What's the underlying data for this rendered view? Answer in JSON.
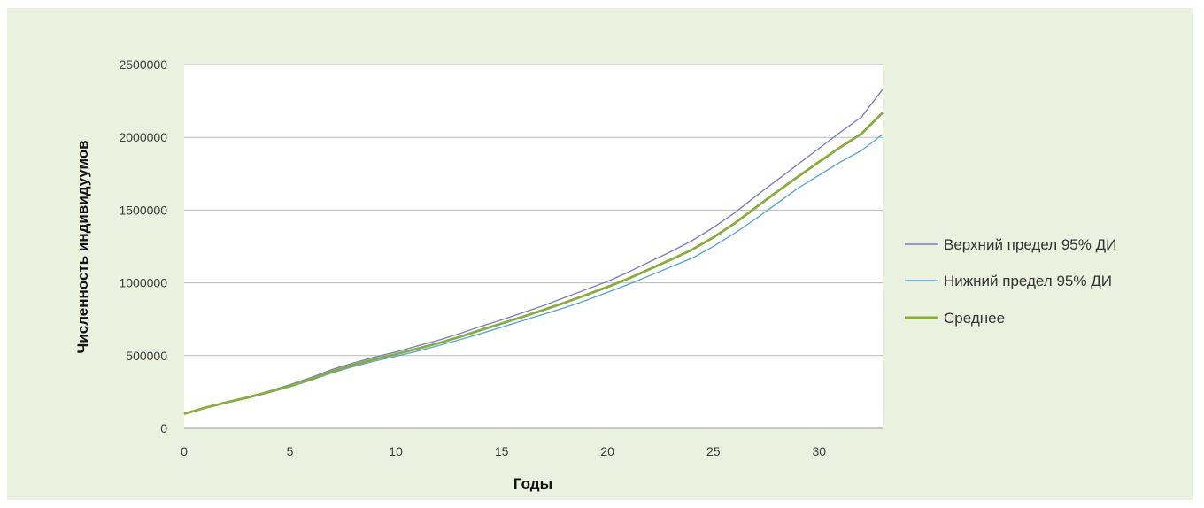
{
  "chart_data": {
    "type": "line",
    "title": "",
    "xlabel": "Годы",
    "ylabel": "Численность индивидуумов",
    "xlim": [
      0,
      33
    ],
    "ylim": [
      0,
      2500000
    ],
    "x_ticks": [
      0,
      5,
      10,
      15,
      20,
      25,
      30
    ],
    "y_ticks": [
      0,
      500000,
      1000000,
      1500000,
      2000000,
      2500000
    ],
    "grid": "horizontal",
    "legend_position": "right",
    "x": [
      0,
      1,
      2,
      3,
      4,
      5,
      6,
      7,
      8,
      9,
      10,
      11,
      12,
      13,
      14,
      15,
      16,
      17,
      18,
      19,
      20,
      21,
      22,
      23,
      24,
      25,
      26,
      27,
      28,
      29,
      30,
      31,
      32,
      33
    ],
    "series": [
      {
        "name": "Верхний предел 95% ДИ",
        "color": "#7b7fc4",
        "values": [
          100000,
          145000,
          180000,
          215000,
          255000,
          300000,
          350000,
          405000,
          450000,
          490000,
          525000,
          565000,
          605000,
          650000,
          700000,
          745000,
          795000,
          845000,
          900000,
          955000,
          1010000,
          1075000,
          1145000,
          1215000,
          1290000,
          1380000,
          1480000,
          1595000,
          1705000,
          1815000,
          1925000,
          2035000,
          2140000,
          2330000
        ]
      },
      {
        "name": "Нижний предел 95% ДИ",
        "color": "#5aa9d6",
        "values": [
          100000,
          140000,
          175000,
          208000,
          245000,
          285000,
          332000,
          382000,
          425000,
          462000,
          495000,
          530000,
          568000,
          608000,
          650000,
          695000,
          740000,
          785000,
          830000,
          880000,
          935000,
          990000,
          1050000,
          1110000,
          1170000,
          1250000,
          1340000,
          1440000,
          1545000,
          1650000,
          1740000,
          1830000,
          1910000,
          2020000
        ]
      },
      {
        "name": "Среднее",
        "color": "#8aac3a",
        "values": [
          100000,
          142000,
          178000,
          212000,
          250000,
          292000,
          340000,
          392000,
          437000,
          475000,
          510000,
          547000,
          585000,
          628000,
          675000,
          720000,
          767000,
          815000,
          865000,
          917000,
          972000,
          1030000,
          1095000,
          1160000,
          1228000,
          1312000,
          1408000,
          1517000,
          1625000,
          1730000,
          1832000,
          1932000,
          2025000,
          2170000
        ]
      }
    ]
  }
}
